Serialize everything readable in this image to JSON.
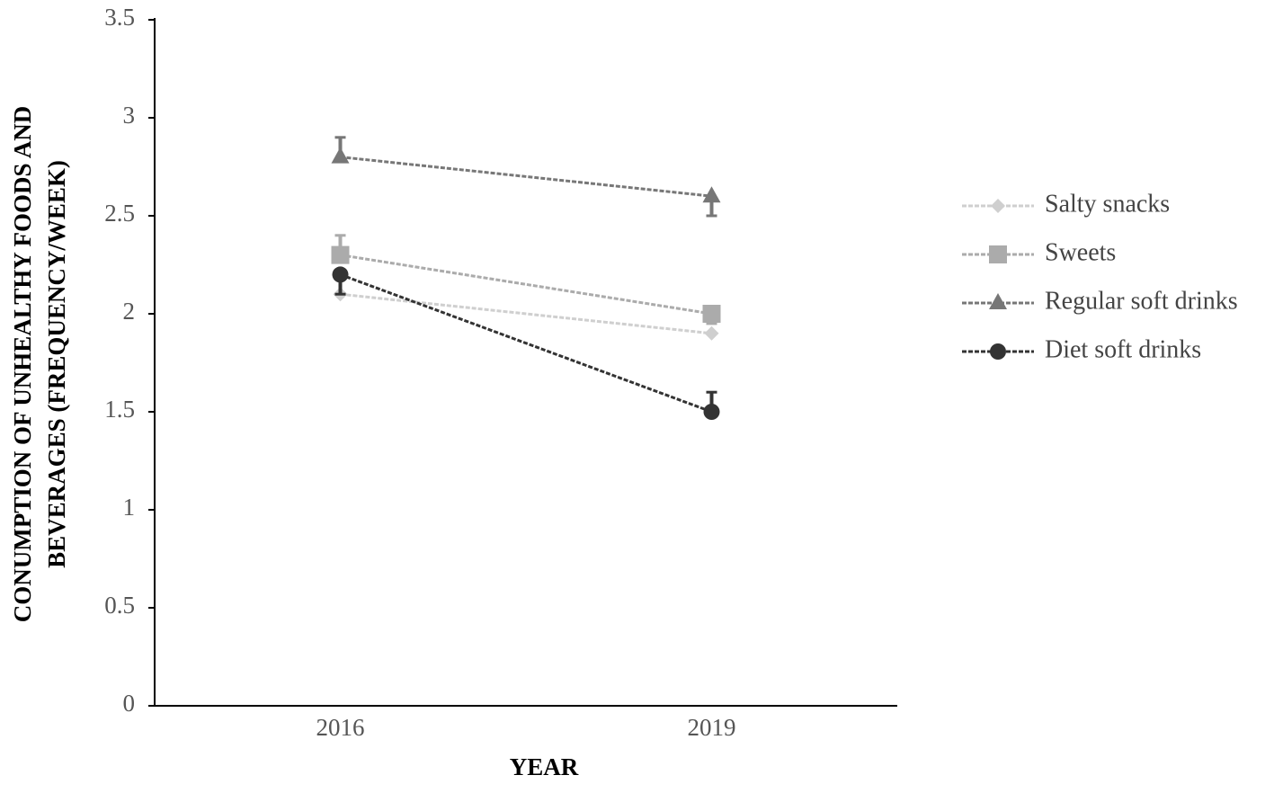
{
  "chart_data": {
    "type": "line",
    "y_label": [
      "CONUMPTION OF UNHEALTHY FOODS  AND",
      "BEVERAGES (FREQUENCY/WEEK)"
    ],
    "x_label": "YEAR",
    "categories": [
      "2016",
      "2019"
    ],
    "ylim": [
      0,
      3.5
    ],
    "yticks": [
      0,
      0.5,
      1,
      1.5,
      2,
      2.5,
      3,
      3.5
    ],
    "legend": "right",
    "series": [
      {
        "name": "Salty snacks",
        "color": "#cfcfcf",
        "marker": "diamond",
        "values": [
          2.1,
          1.9
        ]
      },
      {
        "name": "Sweets",
        "color": "#ababab",
        "marker": "square",
        "values": [
          2.3,
          2.0
        ],
        "errors": [
          0.1,
          0.05
        ],
        "error_side": [
          "up",
          "down"
        ]
      },
      {
        "name": "Regular soft drinks",
        "color": "#777777",
        "marker": "triangle",
        "values": [
          2.8,
          2.6
        ],
        "errors": [
          0.1,
          0.1
        ],
        "error_side": [
          "up",
          "down"
        ]
      },
      {
        "name": "Diet soft drinks",
        "color": "#333333",
        "marker": "circle",
        "values": [
          2.2,
          1.5
        ],
        "errors": [
          0.1,
          0.1
        ],
        "error_side": [
          "down",
          "up"
        ]
      }
    ]
  }
}
